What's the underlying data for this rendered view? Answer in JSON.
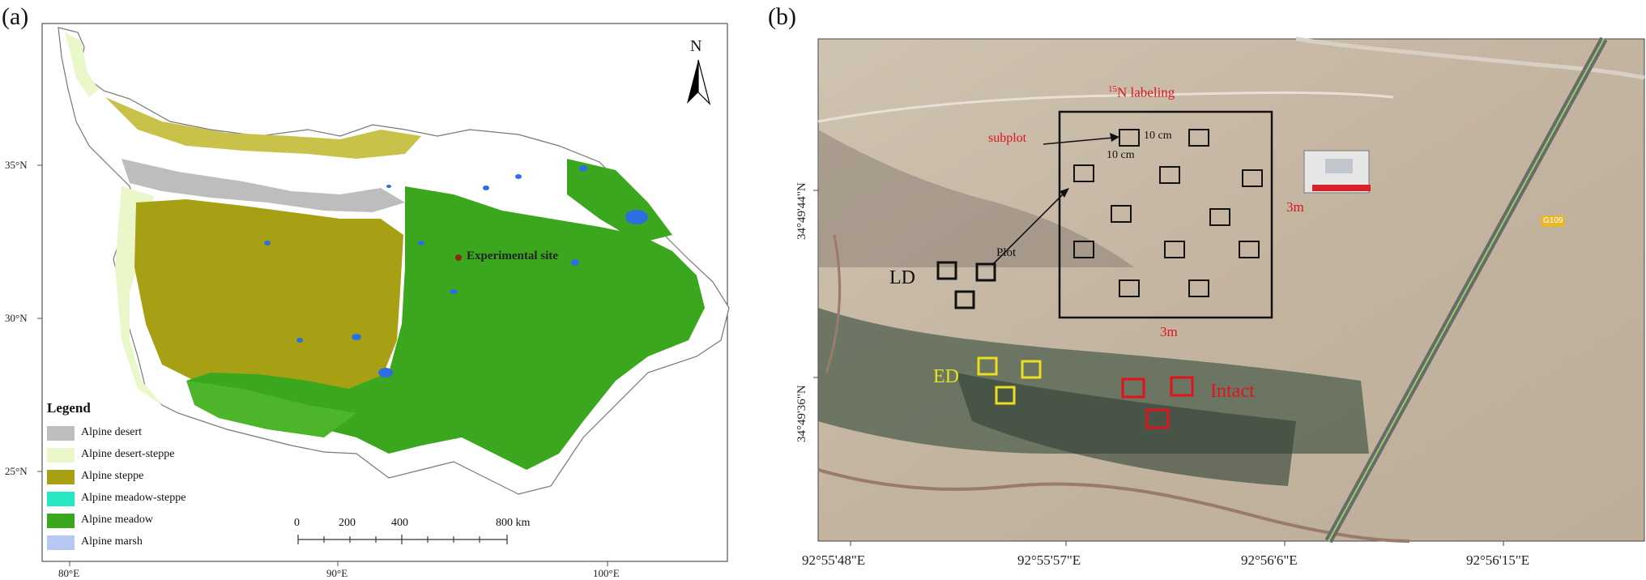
{
  "panels": {
    "a": {
      "letter": "(a)",
      "north": "N",
      "site_label": "Experimental site",
      "legend": {
        "title": "Legend",
        "items": [
          {
            "label": "Alpine desert",
            "color": "#bdbdbd"
          },
          {
            "label": "Alpine desert-steppe",
            "color": "#e9f7c9"
          },
          {
            "label": "Alpine steppe",
            "color": "#a8a014"
          },
          {
            "label": "Alpine meadow-steppe",
            "color": "#26e8c0"
          },
          {
            "label": "Alpine meadow",
            "color": "#3aa71e"
          },
          {
            "label": "Alpine marsh",
            "color": "#b7c9f2"
          }
        ]
      },
      "scale": {
        "ticks": [
          "0",
          "200",
          "400",
          "800 km"
        ]
      },
      "lat_ticks": [
        "35°N",
        "30°N",
        "25°N"
      ],
      "lon_ticks": [
        "80°E",
        "90°E",
        "100°E"
      ]
    },
    "b": {
      "letter": "(b)",
      "labels": {
        "labeling_sup": "15",
        "labeling": "N labeling",
        "subplot": "subplot",
        "dim1": "10 cm",
        "dim2": "10 cm",
        "plot": "Plot",
        "side_right": "3m",
        "side_bottom": "3m",
        "ld": "LD",
        "ed": "ED",
        "intact": "Intact",
        "road_sign": "G109"
      },
      "lat_ticks": [
        "34°49'44\"N",
        "34°49'36\"N"
      ],
      "lon_ticks": [
        "92°55'48\"E",
        "92°55'57\"E",
        "92°56'6\"E",
        "92°56'15\"E"
      ]
    }
  }
}
